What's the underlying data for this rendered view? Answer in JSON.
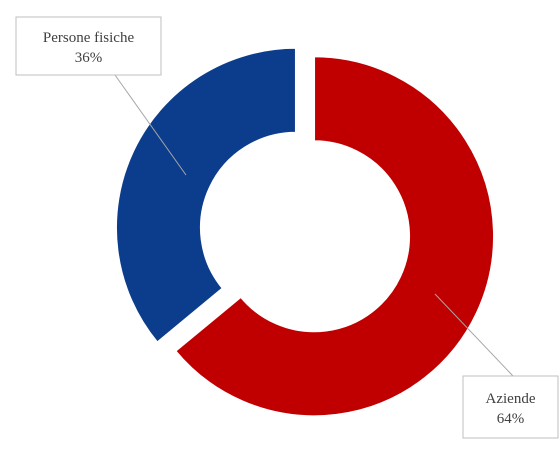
{
  "chart_data": {
    "type": "pie",
    "variant": "donut",
    "categories": [
      "Aziende",
      "Persone fisiche"
    ],
    "values": [
      64,
      36
    ],
    "unit": "%",
    "colors": [
      "#c00000",
      "#0c3d8c"
    ],
    "data_labels": [
      {
        "category": "Aziende",
        "value_text": "64%"
      },
      {
        "category": "Persone fisiche",
        "value_text": "36%"
      }
    ],
    "title": "",
    "legend": "none"
  }
}
